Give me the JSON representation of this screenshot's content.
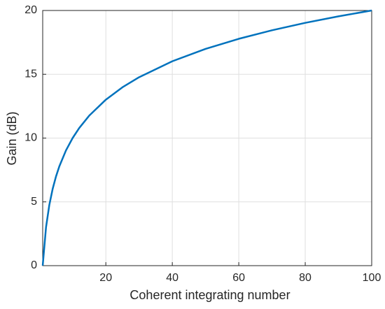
{
  "chart_data": {
    "type": "line",
    "x_label": "Coherent integrating number",
    "y_label": "Gain (dB)",
    "x": [
      1,
      2,
      3,
      4,
      5,
      6,
      8,
      10,
      12,
      15,
      20,
      25,
      30,
      40,
      50,
      60,
      70,
      80,
      90,
      100
    ],
    "series": [
      {
        "color": "#0072bd",
        "values": [
          0,
          3.01,
          4.77,
          6.02,
          6.99,
          7.78,
          9.03,
          10,
          10.79,
          11.76,
          13.01,
          13.98,
          14.77,
          16.02,
          16.99,
          17.78,
          18.45,
          19.03,
          19.54,
          20
        ]
      }
    ],
    "xlim": [
      1,
      100
    ],
    "xticks": [
      20,
      40,
      60,
      80,
      100
    ],
    "ylim": [
      0,
      20
    ],
    "yticks": [
      0,
      5,
      10,
      15,
      20
    ],
    "grid": true
  }
}
